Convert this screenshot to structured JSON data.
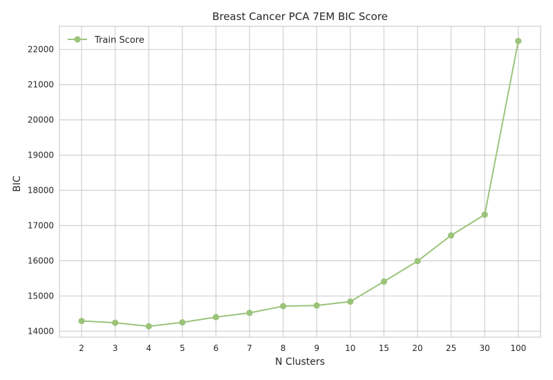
{
  "chart_data": {
    "type": "line",
    "title": "Breast Cancer PCA 7EM BIC Score",
    "xlabel": "N Clusters",
    "ylabel": "BIC",
    "categories": [
      "2",
      "3",
      "4",
      "5",
      "6",
      "7",
      "8",
      "9",
      "10",
      "15",
      "20",
      "25",
      "30",
      "100"
    ],
    "series": [
      {
        "name": "Train Score",
        "color": "#9bc37a",
        "marker": "circle",
        "values": [
          14290,
          14240,
          14140,
          14250,
          14400,
          14520,
          14710,
          14730,
          14840,
          15410,
          15990,
          16720,
          17310,
          22240
        ]
      }
    ],
    "yticks": [
      14000,
      15000,
      16000,
      17000,
      18000,
      19000,
      20000,
      21000,
      22000
    ],
    "ylim": [
      13830,
      22660
    ],
    "grid": true,
    "legend_position": "top-left",
    "x_scale": "categorical"
  }
}
